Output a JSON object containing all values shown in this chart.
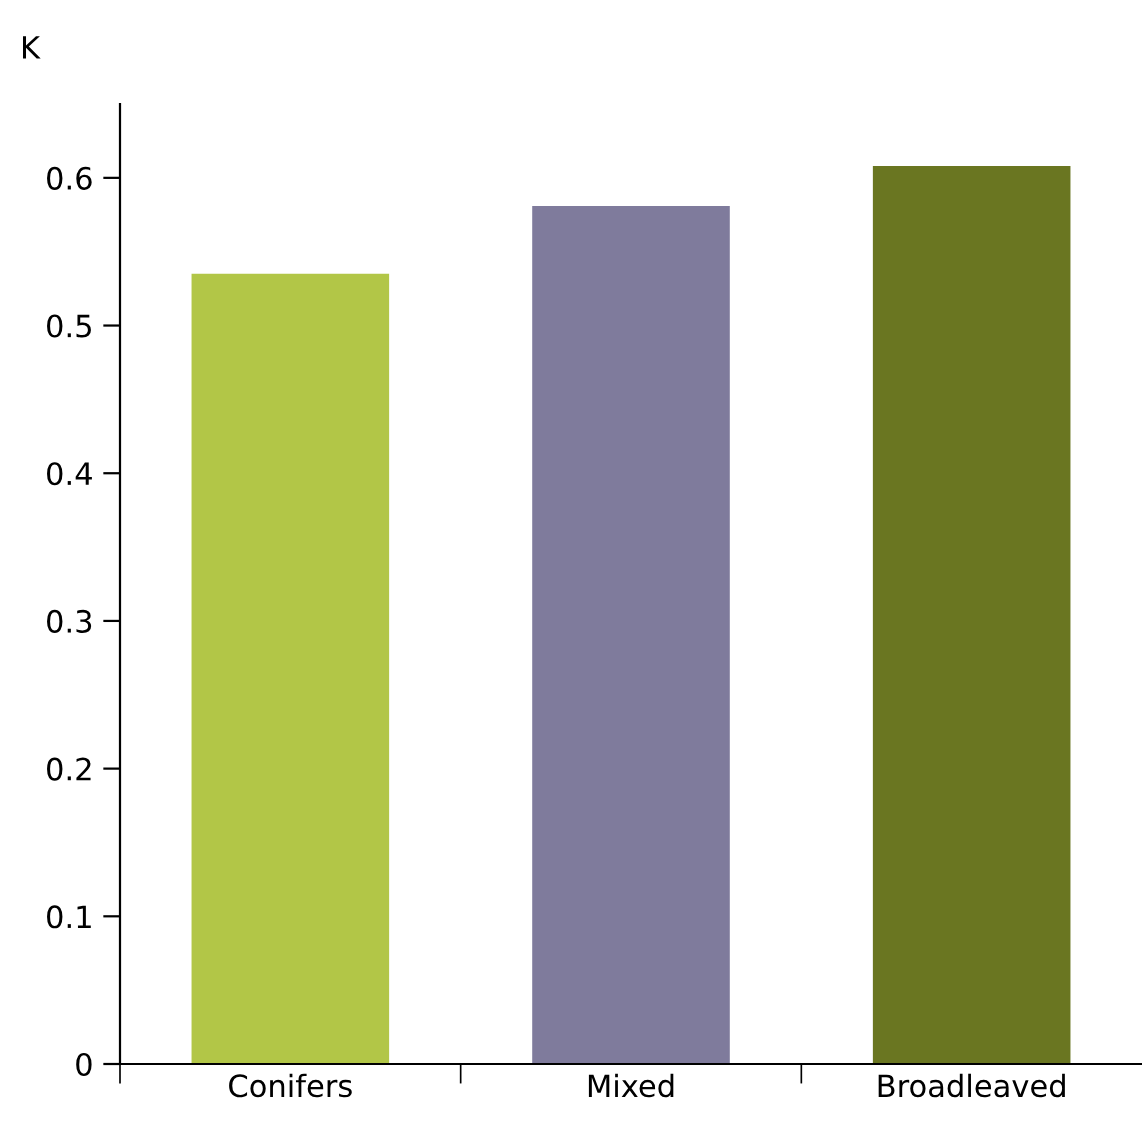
{
  "chart_data": {
    "type": "bar",
    "ylabel": "K",
    "categories": [
      "Conifers",
      "Mixed",
      "Broadleaved"
    ],
    "values": [
      0.535,
      0.581,
      0.608
    ],
    "colors": [
      "#b2c647",
      "#7f7b9c",
      "#6a7621"
    ],
    "ylim": [
      0,
      0.65
    ],
    "yticks": [
      0,
      0.1,
      0.2,
      0.3,
      0.4,
      0.5,
      0.6
    ],
    "grid": false,
    "legend": false
  }
}
